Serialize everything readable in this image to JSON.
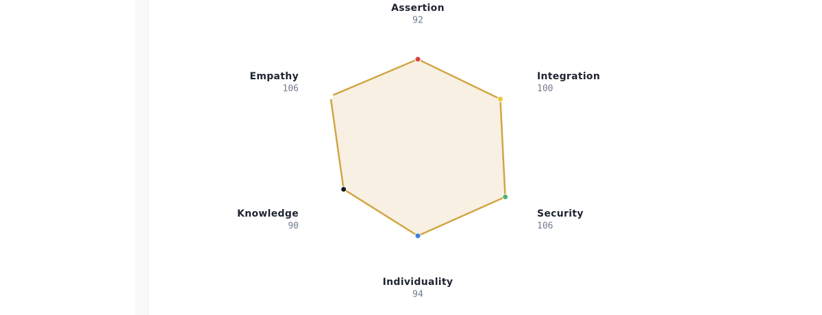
{
  "chart_data": {
    "type": "radar",
    "categories": [
      "Assertion",
      "Integration",
      "Security",
      "Individuality",
      "Knowledge",
      "Empathy"
    ],
    "values": [
      92,
      100,
      106,
      94,
      90,
      106
    ],
    "point_colors": [
      "#d9453f",
      "#e8c93a",
      "#4fb466",
      "#3f7fdc",
      "#1a1a1a",
      "#ffffff"
    ],
    "color": "#d1a543",
    "fill": "#f7f0e3"
  }
}
